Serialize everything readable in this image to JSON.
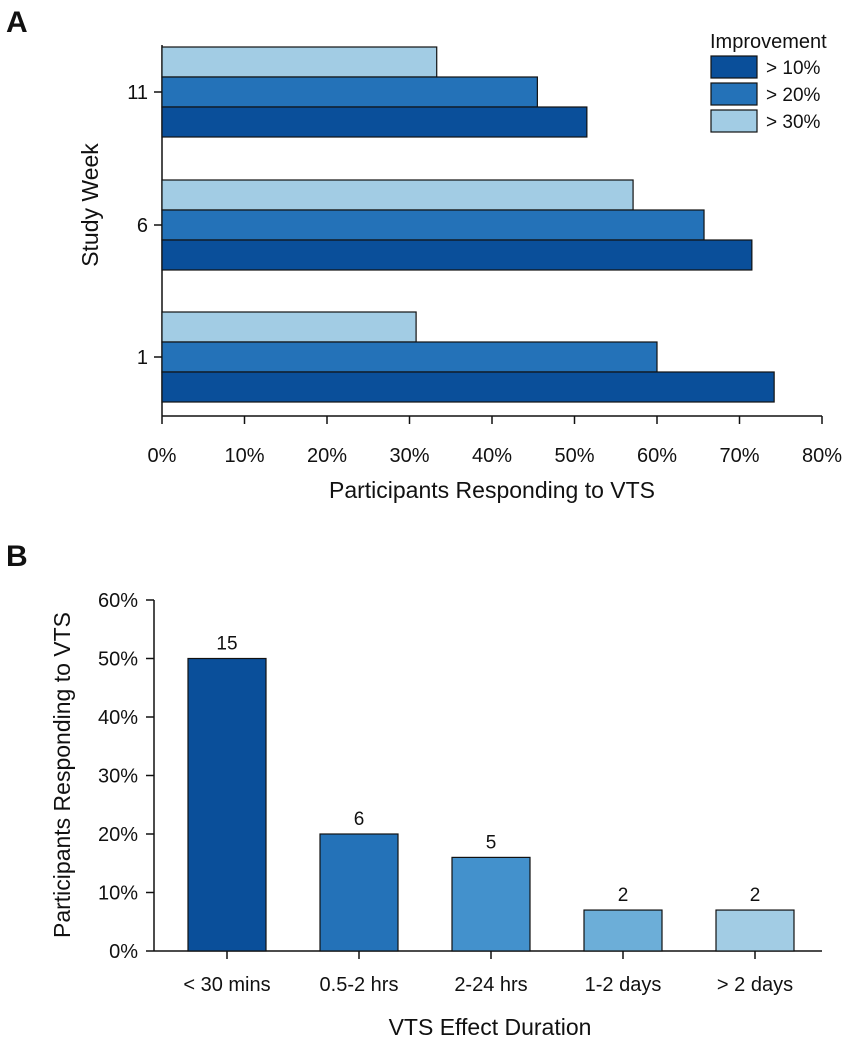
{
  "chart_data": [
    {
      "panel": "A",
      "type": "bar",
      "orientation": "horizontal",
      "title": "",
      "categories": [
        "11",
        "6",
        "1"
      ],
      "xlabel": "Participants Responding to VTS",
      "ylabel": "Study Week",
      "xlim": [
        0,
        80
      ],
      "xticks": [
        "0%",
        "10%",
        "20%",
        "30%",
        "40%",
        "50%",
        "60%",
        "70%",
        "80%"
      ],
      "legend": {
        "title": "Improvement",
        "position": "top-right"
      },
      "series": [
        {
          "name": "> 10%",
          "color": "#0a4f9a",
          "values": [
            51.5,
            71.5,
            74.2
          ]
        },
        {
          "name": "> 20%",
          "color": "#2472b8",
          "values": [
            45.5,
            65.7,
            60.0
          ]
        },
        {
          "name": "> 30%",
          "color": "#a2cce4",
          "values": [
            33.3,
            57.1,
            30.8
          ]
        }
      ]
    },
    {
      "panel": "B",
      "type": "bar",
      "orientation": "vertical",
      "title": "",
      "categories": [
        "< 30 mins",
        "0.5-2 hrs",
        "2-24 hrs",
        "1-2 days",
        "> 2 days"
      ],
      "values": [
        50,
        20,
        16,
        7,
        7
      ],
      "counts": [
        "15",
        "6",
        "5",
        "2",
        "2"
      ],
      "colors": [
        "#0a4f9a",
        "#2472b8",
        "#4391cc",
        "#6caed8",
        "#a2cce4"
      ],
      "xlabel": "VTS Effect Duration",
      "ylabel": "Participants Responding to VTS",
      "ylim": [
        0,
        60
      ],
      "yticks": [
        "0%",
        "10%",
        "20%",
        "30%",
        "40%",
        "50%",
        "60%"
      ]
    }
  ]
}
